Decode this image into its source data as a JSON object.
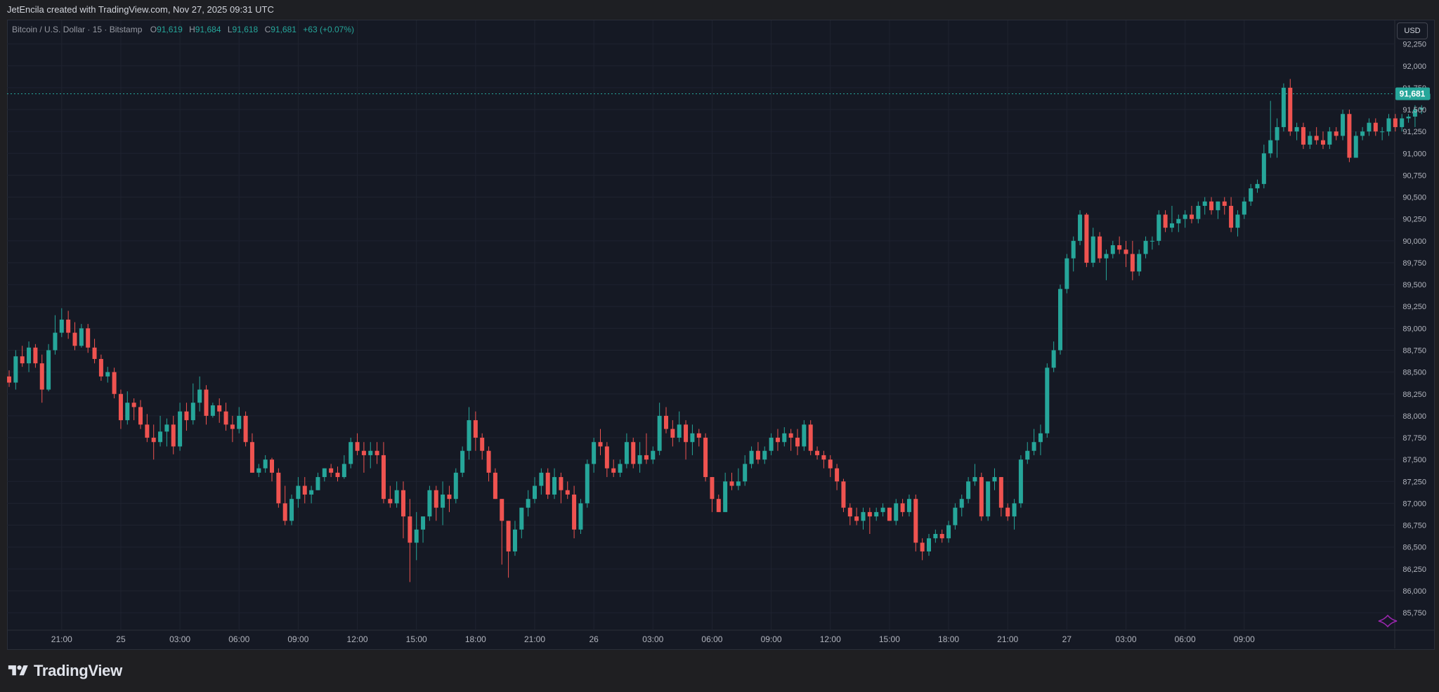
{
  "header": {
    "attribution": "JetEncila created with TradingView.com, Nov 27, 2025 09:31 UTC"
  },
  "legend": {
    "symbol": "Bitcoin / U.S. Dollar · 15 · Bitstamp",
    "open_label": "O",
    "open": "91,619",
    "high_label": "H",
    "high": "91,684",
    "low_label": "L",
    "low": "91,618",
    "close_label": "C",
    "close": "91,681",
    "change": "+63 (+0.07%)"
  },
  "currency": "USD",
  "last_price_label": "91,681",
  "brand": {
    "name": "TradingView"
  },
  "colors": {
    "up": "#26a69a",
    "down": "#ef5350",
    "background": "#151924",
    "grid": "#1f2330",
    "axis_text": "#b2b5be",
    "last_price": "#26a69a"
  },
  "chart_data": {
    "type": "candlestick",
    "symbol": "BTCUSD",
    "interval": "15",
    "exchange": "Bitstamp",
    "currency": "USD",
    "ylim": [
      85550,
      92520
    ],
    "y_ticks": [
      "85,750",
      "86,000",
      "86,250",
      "86,500",
      "86,750",
      "87,000",
      "87,250",
      "87,500",
      "87,750",
      "88,000",
      "88,250",
      "88,500",
      "88,750",
      "89,000",
      "89,250",
      "89,500",
      "89,750",
      "90,000",
      "90,250",
      "90,500",
      "90,750",
      "91,000",
      "91,250",
      "91,500",
      "91,750",
      "92,000",
      "92,250"
    ],
    "x_ticks": [
      {
        "label": "21:00",
        "bar": 8
      },
      {
        "label": "25",
        "bar": 17
      },
      {
        "label": "03:00",
        "bar": 26
      },
      {
        "label": "06:00",
        "bar": 35
      },
      {
        "label": "09:00",
        "bar": 44
      },
      {
        "label": "12:00",
        "bar": 53
      },
      {
        "label": "15:00",
        "bar": 62
      },
      {
        "label": "18:00",
        "bar": 71
      },
      {
        "label": "21:00",
        "bar": 80
      },
      {
        "label": "26",
        "bar": 89
      },
      {
        "label": "03:00",
        "bar": 98
      },
      {
        "label": "06:00",
        "bar": 107
      },
      {
        "label": "09:00",
        "bar": 116
      },
      {
        "label": "12:00",
        "bar": 125
      },
      {
        "label": "15:00",
        "bar": 134
      },
      {
        "label": "18:00",
        "bar": 143
      },
      {
        "label": "21:00",
        "bar": 152
      },
      {
        "label": "27",
        "bar": 161
      },
      {
        "label": "03:00",
        "bar": 170
      },
      {
        "label": "06:00",
        "bar": 179
      },
      {
        "label": "09:00",
        "bar": 188
      }
    ],
    "last_price": 91681,
    "candles": [
      [
        88450,
        88520,
        88330,
        88380
      ],
      [
        88380,
        88750,
        88300,
        88680
      ],
      [
        88680,
        88800,
        88560,
        88600
      ],
      [
        88600,
        88850,
        88500,
        88780
      ],
      [
        88780,
        88820,
        88550,
        88600
      ],
      [
        88600,
        88700,
        88150,
        88300
      ],
      [
        88300,
        88820,
        88280,
        88750
      ],
      [
        88750,
        89150,
        88700,
        88950
      ],
      [
        88950,
        89230,
        88900,
        89100
      ],
      [
        89100,
        89200,
        88880,
        88950
      ],
      [
        88950,
        89070,
        88750,
        88800
      ],
      [
        88800,
        89050,
        88780,
        89000
      ],
      [
        89000,
        89050,
        88720,
        88780
      ],
      [
        88780,
        88880,
        88600,
        88650
      ],
      [
        88650,
        88700,
        88400,
        88450
      ],
      [
        88450,
        88560,
        88380,
        88500
      ],
      [
        88500,
        88550,
        88200,
        88250
      ],
      [
        88250,
        88300,
        87850,
        87950
      ],
      [
        87950,
        88280,
        87900,
        88150
      ],
      [
        88150,
        88200,
        87950,
        88100
      ],
      [
        88100,
        88180,
        87850,
        87900
      ],
      [
        87900,
        88020,
        87700,
        87750
      ],
      [
        87750,
        87900,
        87500,
        87700
      ],
      [
        87700,
        88000,
        87650,
        87820
      ],
      [
        87820,
        87970,
        87650,
        87900
      ],
      [
        87900,
        88000,
        87560,
        87650
      ],
      [
        87650,
        88150,
        87600,
        88050
      ],
      [
        88050,
        88150,
        87830,
        87950
      ],
      [
        87950,
        88370,
        87900,
        88150
      ],
      [
        88150,
        88450,
        88050,
        88300
      ],
      [
        88300,
        88350,
        87900,
        88000
      ],
      [
        88000,
        88150,
        87980,
        88120
      ],
      [
        88120,
        88200,
        87920,
        88050
      ],
      [
        88050,
        88150,
        87830,
        87900
      ],
      [
        87900,
        88000,
        87700,
        87850
      ],
      [
        87850,
        88100,
        87800,
        88000
      ],
      [
        88000,
        88050,
        87650,
        87700
      ],
      [
        87700,
        87800,
        87350,
        87350
      ],
      [
        87350,
        87450,
        87300,
        87400
      ],
      [
        87400,
        87550,
        87350,
        87500
      ],
      [
        87500,
        87520,
        87250,
        87350
      ],
      [
        87350,
        87400,
        86950,
        87000
      ],
      [
        87000,
        87200,
        86750,
        86800
      ],
      [
        86800,
        87100,
        86750,
        87050
      ],
      [
        87050,
        87300,
        86950,
        87200
      ],
      [
        87200,
        87300,
        87000,
        87100
      ],
      [
        87100,
        87200,
        87000,
        87150
      ],
      [
        87150,
        87350,
        87150,
        87300
      ],
      [
        87300,
        87400,
        87250,
        87400
      ],
      [
        87400,
        87450,
        87300,
        87350
      ],
      [
        87350,
        87420,
        87250,
        87300
      ],
      [
        87300,
        87550,
        87280,
        87450
      ],
      [
        87450,
        87750,
        87400,
        87700
      ],
      [
        87700,
        87800,
        87550,
        87600
      ],
      [
        87600,
        87700,
        87350,
        87550
      ],
      [
        87550,
        87700,
        87400,
        87600
      ],
      [
        87600,
        87700,
        87450,
        87550
      ],
      [
        87550,
        87700,
        87000,
        87050
      ],
      [
        87050,
        87200,
        86950,
        87000
      ],
      [
        87000,
        87250,
        86950,
        87150
      ],
      [
        87150,
        87250,
        86600,
        86850
      ],
      [
        86850,
        87050,
        86100,
        86550
      ],
      [
        86550,
        86900,
        86350,
        86700
      ],
      [
        86700,
        86850,
        86550,
        86850
      ],
      [
        86850,
        87200,
        86800,
        87150
      ],
      [
        87150,
        87200,
        86800,
        86950
      ],
      [
        86950,
        87250,
        86750,
        87100
      ],
      [
        87100,
        87200,
        86900,
        87050
      ],
      [
        87050,
        87400,
        87000,
        87350
      ],
      [
        87350,
        87650,
        87300,
        87600
      ],
      [
        87600,
        88100,
        87500,
        87950
      ],
      [
        87950,
        88050,
        87600,
        87750
      ],
      [
        87750,
        87800,
        87500,
        87600
      ],
      [
        87600,
        87650,
        87250,
        87350
      ],
      [
        87350,
        87400,
        87050,
        87050
      ],
      [
        87050,
        87050,
        86300,
        86800
      ],
      [
        86800,
        86800,
        86150,
        86450
      ],
      [
        86450,
        86800,
        86400,
        86700
      ],
      [
        86700,
        86950,
        86600,
        86950
      ],
      [
        86950,
        87150,
        86850,
        87050
      ],
      [
        87050,
        87300,
        87000,
        87200
      ],
      [
        87200,
        87400,
        87100,
        87350
      ],
      [
        87350,
        87400,
        87050,
        87100
      ],
      [
        87100,
        87400,
        87050,
        87300
      ],
      [
        87300,
        87350,
        87000,
        87150
      ],
      [
        87150,
        87250,
        87050,
        87100
      ],
      [
        87100,
        87200,
        86600,
        86700
      ],
      [
        86700,
        87050,
        86650,
        87000
      ],
      [
        87000,
        87500,
        86950,
        87450
      ],
      [
        87450,
        87750,
        87350,
        87700
      ],
      [
        87700,
        87850,
        87550,
        87650
      ],
      [
        87650,
        87700,
        87300,
        87400
      ],
      [
        87400,
        87500,
        87300,
        87350
      ],
      [
        87350,
        87500,
        87300,
        87450
      ],
      [
        87450,
        87800,
        87400,
        87700
      ],
      [
        87700,
        87750,
        87400,
        87450
      ],
      [
        87450,
        87700,
        87350,
        87550
      ],
      [
        87550,
        87800,
        87450,
        87500
      ],
      [
        87500,
        87650,
        87450,
        87600
      ],
      [
        87600,
        88150,
        87550,
        88000
      ],
      [
        88000,
        88100,
        87800,
        87850
      ],
      [
        87850,
        87950,
        87650,
        87750
      ],
      [
        87750,
        88050,
        87700,
        87900
      ],
      [
        87900,
        87950,
        87500,
        87700
      ],
      [
        87700,
        87900,
        87550,
        87800
      ],
      [
        87800,
        87850,
        87650,
        87750
      ],
      [
        87750,
        87800,
        87250,
        87300
      ],
      [
        87300,
        87300,
        86900,
        87050
      ],
      [
        87050,
        87100,
        86900,
        86900
      ],
      [
        86900,
        87350,
        86900,
        87250
      ],
      [
        87250,
        87350,
        87150,
        87200
      ],
      [
        87200,
        87400,
        87150,
        87250
      ],
      [
        87250,
        87550,
        87200,
        87450
      ],
      [
        87450,
        87650,
        87400,
        87600
      ],
      [
        87600,
        87700,
        87450,
        87500
      ],
      [
        87500,
        87650,
        87450,
        87600
      ],
      [
        87600,
        87800,
        87550,
        87750
      ],
      [
        87750,
        87850,
        87600,
        87700
      ],
      [
        87700,
        87870,
        87650,
        87800
      ],
      [
        87800,
        87850,
        87600,
        87750
      ],
      [
        87750,
        87850,
        87550,
        87650
      ],
      [
        87650,
        87950,
        87600,
        87900
      ],
      [
        87900,
        87950,
        87550,
        87600
      ],
      [
        87600,
        87650,
        87500,
        87550
      ],
      [
        87550,
        87600,
        87400,
        87500
      ],
      [
        87500,
        87550,
        87300,
        87400
      ],
      [
        87400,
        87450,
        87150,
        87250
      ],
      [
        87250,
        87280,
        86900,
        86950
      ],
      [
        86950,
        87000,
        86750,
        86850
      ],
      [
        86850,
        86950,
        86750,
        86800
      ],
      [
        86800,
        86950,
        86700,
        86900
      ],
      [
        86900,
        86950,
        86650,
        86850
      ],
      [
        86850,
        86950,
        86800,
        86900
      ],
      [
        86900,
        87000,
        86850,
        86950
      ],
      [
        86950,
        86950,
        86800,
        86800
      ],
      [
        86800,
        87050,
        86750,
        87000
      ],
      [
        87000,
        87050,
        86850,
        86900
      ],
      [
        86900,
        87100,
        86850,
        87050
      ],
      [
        87050,
        87100,
        86450,
        86550
      ],
      [
        86550,
        86600,
        86350,
        86450
      ],
      [
        86450,
        86650,
        86400,
        86600
      ],
      [
        86600,
        86700,
        86550,
        86650
      ],
      [
        86650,
        86700,
        86550,
        86600
      ],
      [
        86600,
        86800,
        86550,
        86750
      ],
      [
        86750,
        87000,
        86700,
        86950
      ],
      [
        86950,
        87100,
        86850,
        87050
      ],
      [
        87050,
        87300,
        87000,
        87250
      ],
      [
        87250,
        87450,
        87200,
        87300
      ],
      [
        87300,
        87350,
        86800,
        86850
      ],
      [
        86850,
        87200,
        86800,
        87250
      ],
      [
        87250,
        87400,
        87150,
        87300
      ],
      [
        87300,
        87300,
        86850,
        86950
      ],
      [
        86950,
        87000,
        86800,
        86850
      ],
      [
        86850,
        87050,
        86700,
        87000
      ],
      [
        87000,
        87550,
        86950,
        87500
      ],
      [
        87500,
        87700,
        87450,
        87600
      ],
      [
        87600,
        87850,
        87550,
        87700
      ],
      [
        87700,
        87900,
        87550,
        87800
      ],
      [
        87800,
        88600,
        87750,
        88550
      ],
      [
        88550,
        88850,
        88500,
        88750
      ],
      [
        88750,
        89500,
        88700,
        89450
      ],
      [
        89450,
        89850,
        89400,
        89800
      ],
      [
        89800,
        90050,
        89650,
        90000
      ],
      [
        90000,
        90350,
        89950,
        90300
      ],
      [
        90300,
        90320,
        89700,
        89750
      ],
      [
        89750,
        90150,
        89700,
        90050
      ],
      [
        90050,
        90100,
        89750,
        89800
      ],
      [
        89800,
        89900,
        89550,
        89850
      ],
      [
        89850,
        90000,
        89800,
        89950
      ],
      [
        89950,
        90050,
        89850,
        89900
      ],
      [
        89900,
        90000,
        89700,
        89850
      ],
      [
        89850,
        90000,
        89550,
        89650
      ],
      [
        89650,
        89900,
        89600,
        89850
      ],
      [
        89850,
        90050,
        89800,
        90000
      ],
      [
        90000,
        90050,
        89900,
        90000
      ],
      [
        90000,
        90350,
        89950,
        90300
      ],
      [
        90300,
        90350,
        90100,
        90150
      ],
      [
        90150,
        90400,
        90100,
        90200
      ],
      [
        90200,
        90300,
        90100,
        90250
      ],
      [
        90250,
        90350,
        90150,
        90300
      ],
      [
        90300,
        90400,
        90200,
        90250
      ],
      [
        90250,
        90450,
        90200,
        90400
      ],
      [
        90400,
        90500,
        90300,
        90450
      ],
      [
        90450,
        90500,
        90300,
        90350
      ],
      [
        90350,
        90450,
        90250,
        90450
      ],
      [
        90450,
        90500,
        90300,
        90400
      ],
      [
        90400,
        90500,
        90100,
        90150
      ],
      [
        90150,
        90350,
        90050,
        90300
      ],
      [
        90300,
        90500,
        90250,
        90450
      ],
      [
        90450,
        90650,
        90400,
        90600
      ],
      [
        90600,
        90700,
        90550,
        90650
      ],
      [
        90650,
        91100,
        90600,
        91000
      ],
      [
        91000,
        91600,
        90950,
        91150
      ],
      [
        91150,
        91400,
        90950,
        91300
      ],
      [
        91300,
        91800,
        91250,
        91750
      ],
      [
        91750,
        91850,
        91200,
        91250
      ],
      [
        91250,
        91350,
        91150,
        91300
      ],
      [
        91300,
        91350,
        91050,
        91100
      ],
      [
        91100,
        91250,
        91050,
        91200
      ],
      [
        91200,
        91300,
        91100,
        91150
      ],
      [
        91150,
        91250,
        91050,
        91100
      ],
      [
        91100,
        91300,
        91050,
        91250
      ],
      [
        91250,
        91300,
        91150,
        91200
      ],
      [
        91200,
        91500,
        91150,
        91450
      ],
      [
        91450,
        91500,
        90900,
        90950
      ],
      [
        90950,
        91250,
        90950,
        91200
      ],
      [
        91200,
        91300,
        91150,
        91250
      ],
      [
        91250,
        91400,
        91200,
        91350
      ],
      [
        91350,
        91400,
        91200,
        91250
      ],
      [
        91250,
        91300,
        91150,
        91250
      ],
      [
        91250,
        91450,
        91200,
        91400
      ],
      [
        91400,
        91450,
        91250,
        91300
      ],
      [
        91300,
        91450,
        91250,
        91400
      ],
      [
        91400,
        91450,
        91350,
        91420
      ],
      [
        91420,
        91550,
        91300,
        91500
      ],
      [
        91500,
        91550,
        91450,
        91519
      ],
      [
        91619,
        91684,
        91618,
        91681
      ]
    ]
  }
}
